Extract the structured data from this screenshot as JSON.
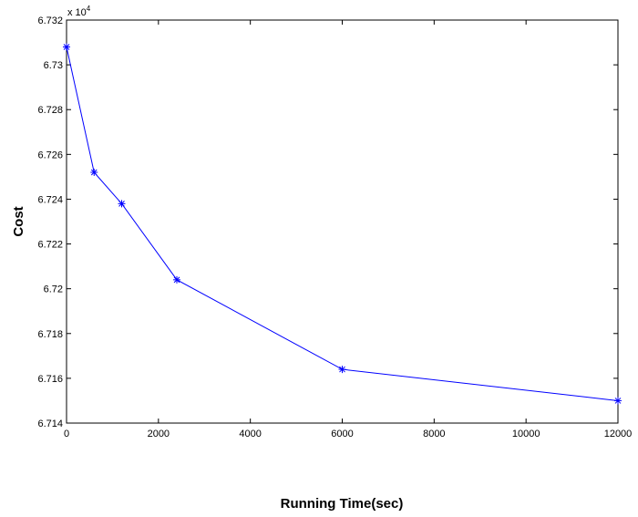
{
  "chart_data": {
    "type": "line",
    "title": "",
    "xlabel": "Running Time(sec)",
    "ylabel": "Cost",
    "y_multiplier_label": "x 10",
    "y_multiplier_exponent": "4",
    "xlim": [
      0,
      12000
    ],
    "ylim": [
      6.714,
      6.732
    ],
    "x_ticks": [
      0,
      2000,
      4000,
      6000,
      8000,
      10000,
      12000
    ],
    "x_tick_labels": [
      "0",
      "2000",
      "4000",
      "6000",
      "8000",
      "10000",
      "12000"
    ],
    "y_ticks": [
      6.714,
      6.716,
      6.718,
      6.72,
      6.722,
      6.724,
      6.726,
      6.728,
      6.73,
      6.732
    ],
    "y_tick_labels": [
      "6.714",
      "6.716",
      "6.718",
      "6.72",
      "6.722",
      "6.724",
      "6.726",
      "6.728",
      "6.73",
      "6.732"
    ],
    "grid": false,
    "line_color": "#0000ff",
    "marker": "asterisk",
    "series": [
      {
        "x": [
          0,
          600,
          1200,
          2400,
          6000,
          12000
        ],
        "y": [
          6.7308,
          6.7252,
          6.7238,
          6.7204,
          6.7164,
          6.715
        ]
      }
    ]
  }
}
